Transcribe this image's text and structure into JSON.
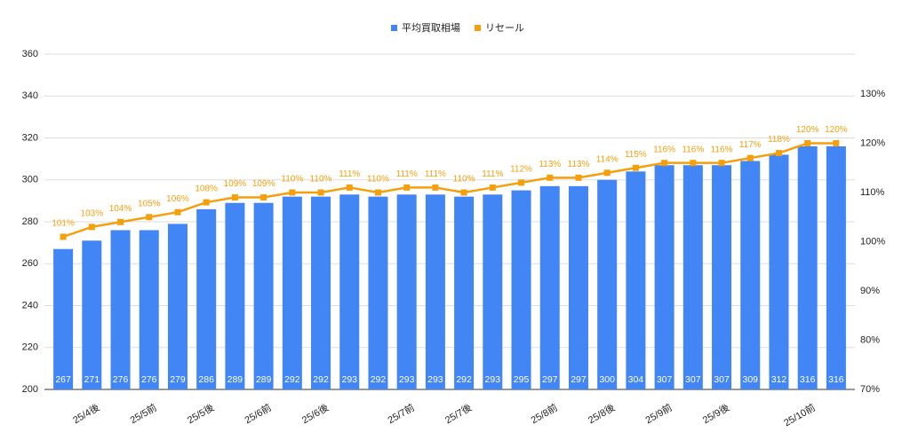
{
  "chart_data": {
    "type": "bar-line",
    "categories": [
      null,
      "25/4後",
      null,
      "25/5前",
      null,
      "25/5後",
      null,
      "25/6前",
      null,
      "25/6後",
      null,
      null,
      "25/7前",
      null,
      "25/7後",
      null,
      null,
      "25/8前",
      null,
      "25/8後",
      null,
      "25/9前",
      null,
      "25/9後",
      null,
      null,
      "25/10前",
      null
    ],
    "series": [
      {
        "name": "平均買取相場",
        "color": "#4285f4",
        "type": "bar",
        "values": [
          267,
          271,
          276,
          276,
          279,
          286,
          289,
          289,
          292,
          292,
          293,
          292,
          293,
          293,
          292,
          293,
          295,
          297,
          297,
          300,
          304,
          307,
          307,
          307,
          309,
          312,
          316,
          316
        ]
      },
      {
        "name": "リセール",
        "color": "#f4a00e",
        "type": "line",
        "axis": "y2",
        "values": [
          101,
          103,
          104,
          105,
          106,
          108,
          109,
          109,
          110,
          110,
          111,
          110,
          111,
          111,
          110,
          111,
          112,
          113,
          113,
          114,
          115,
          116,
          116,
          116,
          117,
          118,
          120,
          120
        ],
        "value_labels": [
          "101%",
          "103%",
          "104%",
          "105%",
          "106%",
          "108%",
          "109%",
          "109%",
          "110%",
          "110%",
          "111%",
          "110%",
          "111%",
          "111%",
          "110%",
          "111%",
          "112%",
          "113%",
          "113%",
          "114%",
          "115%",
          "116%",
          "116%",
          "116%",
          "117%",
          "118%",
          "120%",
          "120%"
        ]
      }
    ],
    "ylim": [
      200,
      360
    ],
    "yticks": [
      200,
      220,
      240,
      260,
      280,
      300,
      320,
      340,
      360
    ],
    "y2lim": [
      70,
      138.1
    ],
    "y2ticks": [
      {
        "value": 70,
        "label": "70%"
      },
      {
        "value": 80,
        "label": "80%"
      },
      {
        "value": 90,
        "label": "90%"
      },
      {
        "value": 100,
        "label": "100%"
      },
      {
        "value": 110,
        "label": "110%"
      },
      {
        "value": 120,
        "label": "120%"
      },
      {
        "value": 130,
        "label": "130%"
      }
    ],
    "grid": true,
    "legend": "top"
  }
}
